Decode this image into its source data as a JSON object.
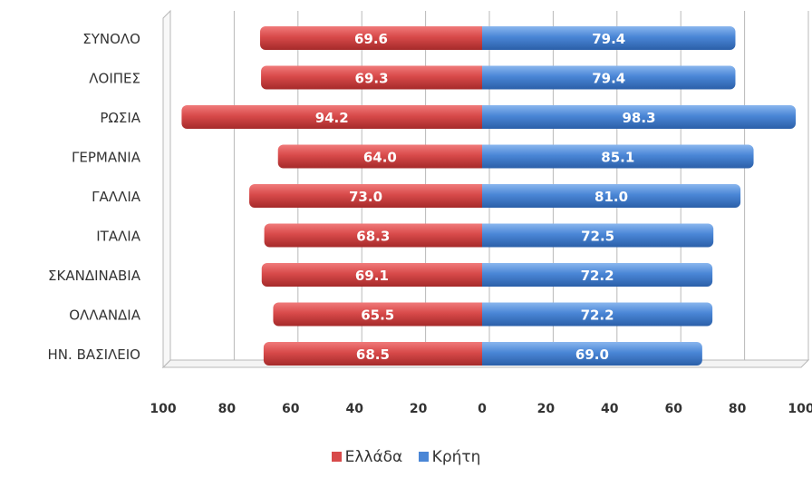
{
  "colors": {
    "left": "#d84a4a",
    "left_dark": "#a52a2a",
    "right": "#4a86d6",
    "right_dark": "#2b5fa8"
  },
  "chart_data": {
    "type": "bar",
    "orientation": "horizontal-diverging",
    "categories": [
      "ΣΥΝΟΛΟ",
      "ΛΟΙΠΕΣ",
      "ΡΩΣΙΑ",
      "ΓΕΡΜΑΝΙΑ",
      "ΓΑΛΛΙΑ",
      "ΙΤΑΛΙΑ",
      "ΣΚΑΝΔΙΝΑΒΙΑ",
      "ΟΛΛΑΝΔΙΑ",
      "ΗΝ. ΒΑΣΙΛΕΙΟ"
    ],
    "series": [
      {
        "name": "Ελλάδα",
        "values": [
          69.6,
          69.3,
          94.2,
          64.0,
          73.0,
          68.3,
          69.1,
          65.5,
          68.5
        ],
        "labels": [
          "69.6",
          "69.3",
          "94.2",
          "64.0",
          "73.0",
          "68.3",
          "69.1",
          "65.5",
          "68.5"
        ]
      },
      {
        "name": "Κρήτη",
        "values": [
          79.4,
          79.4,
          98.3,
          85.1,
          81.0,
          72.5,
          72.2,
          72.2,
          69.0
        ],
        "labels": [
          "79.4",
          "79.4",
          "98.3",
          "85.1",
          "81.0",
          "72.5",
          "72.2",
          "72.2",
          "69.0"
        ]
      }
    ],
    "xticks": [
      "100",
      "80",
      "60",
      "40",
      "20",
      "0",
      "20",
      "40",
      "60",
      "80",
      "100"
    ],
    "xlim": [
      -100,
      100
    ],
    "grid": true,
    "legend_position": "bottom"
  }
}
